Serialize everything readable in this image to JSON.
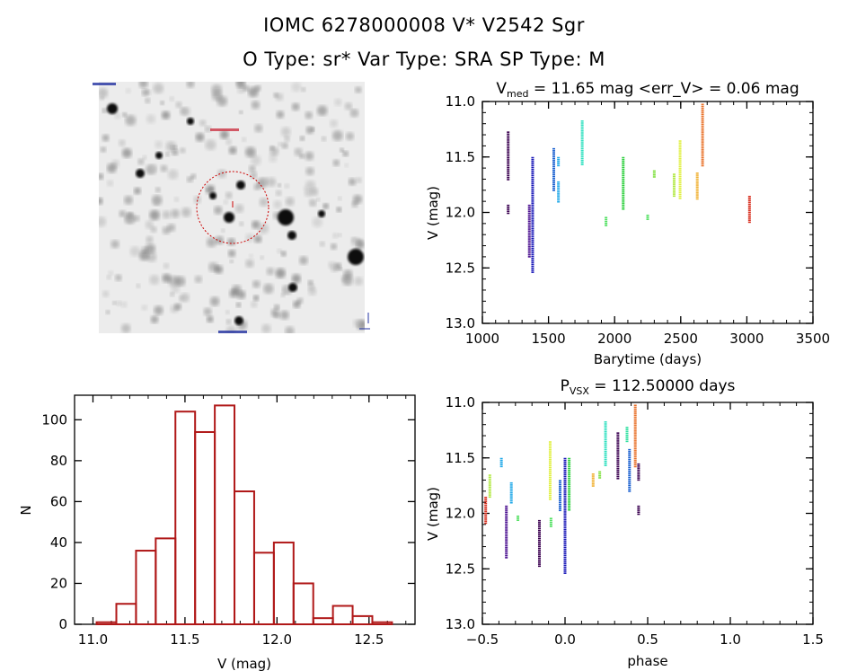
{
  "header": {
    "line1": "IOMC 6278000008    V* V2542 Sgr",
    "line2": "O Type: sr*   Var Type: SRA   SP Type: M"
  },
  "image_panel": {
    "description": "finding chart (grayscale star field)",
    "marker_color": "#cc0000"
  },
  "chart_data": [
    {
      "id": "lightcurve",
      "type": "scatter",
      "title_main": "V",
      "title_sub": "med",
      "title_rest": " = 11.65 mag <err_V> = 0.06 mag",
      "xlabel": "Barytime (days)",
      "ylabel": "V (mag)",
      "xlim": [
        1000,
        3500
      ],
      "ylim": [
        13.0,
        11.0
      ],
      "y_inverted": true,
      "xticks": [
        "1000",
        "1500",
        "2000",
        "2500",
        "3000",
        "3500"
      ],
      "yticks": [
        "11.0",
        "11.5",
        "12.0",
        "12.5",
        "13.0"
      ],
      "series": [
        {
          "name": "s1",
          "color": "#3a0050",
          "x": 1195,
          "y_ranges": [
            [
              11.27,
              11.7
            ],
            [
              11.93,
              12.01
            ]
          ]
        },
        {
          "name": "s2",
          "color": "#4a1090",
          "x": 1355,
          "y_ranges": [
            [
              11.93,
              12.4
            ]
          ]
        },
        {
          "name": "s3",
          "color": "#1a18b8",
          "x": 1380,
          "y_ranges": [
            [
              11.5,
              12.54
            ]
          ]
        },
        {
          "name": "s4",
          "color": "#1a60d0",
          "x": 1540,
          "y_ranges": [
            [
              11.42,
              11.8
            ]
          ]
        },
        {
          "name": "s5",
          "color": "#20a8e8",
          "x": 1575,
          "y_ranges": [
            [
              11.5,
              11.58
            ],
            [
              11.72,
              11.9
            ]
          ]
        },
        {
          "name": "s6",
          "color": "#30e0c0",
          "x": 1755,
          "y_ranges": [
            [
              11.17,
              11.57
            ]
          ]
        },
        {
          "name": "s7",
          "color": "#50e060",
          "x": 1935,
          "y_ranges": [
            [
              12.04,
              12.12
            ]
          ]
        },
        {
          "name": "s8",
          "color": "#30d040",
          "x": 2065,
          "y_ranges": [
            [
              11.5,
              11.97
            ]
          ]
        },
        {
          "name": "s9",
          "color": "#50e060",
          "x": 2250,
          "y_ranges": [
            [
              12.02,
              12.06
            ]
          ]
        },
        {
          "name": "s10",
          "color": "#80e040",
          "x": 2300,
          "y_ranges": [
            [
              11.62,
              11.68
            ]
          ]
        },
        {
          "name": "s11",
          "color": "#b0e840",
          "x": 2450,
          "y_ranges": [
            [
              11.65,
              11.85
            ]
          ]
        },
        {
          "name": "s12",
          "color": "#e0f040",
          "x": 2495,
          "y_ranges": [
            [
              11.35,
              11.88
            ]
          ]
        },
        {
          "name": "s13",
          "color": "#f0b030",
          "x": 2625,
          "y_ranges": [
            [
              11.64,
              11.88
            ]
          ]
        },
        {
          "name": "s14",
          "color": "#e87028",
          "x": 2665,
          "y_ranges": [
            [
              11.02,
              11.58
            ]
          ]
        },
        {
          "name": "s15",
          "color": "#d83020",
          "x": 3020,
          "y_ranges": [
            [
              11.85,
              12.09
            ]
          ]
        }
      ]
    },
    {
      "id": "histogram",
      "type": "bar",
      "xlabel": "V (mag)",
      "ylabel": "N",
      "xlim": [
        10.9,
        12.75
      ],
      "ylim": [
        0,
        112
      ],
      "xticks": [
        "11.0",
        "11.5",
        "12.0",
        "12.5"
      ],
      "yticks": [
        "0",
        "20",
        "40",
        "60",
        "80",
        "100"
      ],
      "bin_width": 0.107,
      "bin_start": 11.02,
      "values": [
        1,
        10,
        36,
        42,
        104,
        94,
        107,
        65,
        35,
        40,
        20,
        3,
        9,
        4,
        1
      ],
      "color": "#b01818"
    },
    {
      "id": "phased",
      "type": "scatter",
      "title_main": "P",
      "title_sub": "VSX",
      "title_rest": " = 112.50000 days",
      "xlabel": "phase",
      "ylabel": "V (mag)",
      "xlim": [
        -0.5,
        1.5
      ],
      "ylim": [
        13.0,
        11.0
      ],
      "y_inverted": true,
      "xticks": [
        "-0.5",
        "0.0",
        "0.5",
        "1.0",
        "1.5"
      ],
      "yticks": [
        "11.0",
        "11.5",
        "12.0",
        "12.5",
        "13.0"
      ],
      "series": [
        {
          "color": "#d83020",
          "x": -0.48,
          "y_ranges": [
            [
              11.85,
              12.09
            ]
          ]
        },
        {
          "color": "#b0e840",
          "x": -0.455,
          "y_ranges": [
            [
              11.65,
              11.85
            ]
          ]
        },
        {
          "color": "#20a8e8",
          "x": -0.385,
          "y_ranges": [
            [
              11.5,
              11.58
            ]
          ]
        },
        {
          "color": "#4a1090",
          "x": -0.355,
          "y_ranges": [
            [
              11.93,
              12.4
            ]
          ]
        },
        {
          "color": "#20a8e8",
          "x": -0.325,
          "y_ranges": [
            [
              11.72,
              11.9
            ]
          ]
        },
        {
          "color": "#50e060",
          "x": -0.285,
          "y_ranges": [
            [
              12.02,
              12.06
            ]
          ]
        },
        {
          "color": "#3a0050",
          "x": -0.155,
          "y_ranges": [
            [
              12.06,
              12.48
            ]
          ]
        },
        {
          "color": "#e0f040",
          "x": -0.09,
          "y_ranges": [
            [
              11.35,
              11.88
            ]
          ]
        },
        {
          "color": "#50e060",
          "x": -0.085,
          "y_ranges": [
            [
              12.04,
              12.12
            ]
          ]
        },
        {
          "color": "#1a60d0",
          "x": -0.03,
          "y_ranges": [
            [
              11.7,
              11.98
            ]
          ]
        },
        {
          "color": "#1a18b8",
          "x": 0.0,
          "y_ranges": [
            [
              11.5,
              12.54
            ]
          ]
        },
        {
          "color": "#30d040",
          "x": 0.025,
          "y_ranges": [
            [
              11.5,
              11.97
            ]
          ]
        },
        {
          "color": "#f0b030",
          "x": 0.17,
          "y_ranges": [
            [
              11.64,
              11.75
            ]
          ]
        },
        {
          "color": "#80e040",
          "x": 0.21,
          "y_ranges": [
            [
              11.62,
              11.68
            ]
          ]
        },
        {
          "color": "#30e0c0",
          "x": 0.245,
          "y_ranges": [
            [
              11.17,
              11.57
            ]
          ]
        },
        {
          "color": "#3a0050",
          "x": 0.32,
          "y_ranges": [
            [
              11.27,
              11.68
            ]
          ]
        },
        {
          "color": "#30e0a0",
          "x": 0.375,
          "y_ranges": [
            [
              11.22,
              11.35
            ]
          ]
        },
        {
          "color": "#1a60d0",
          "x": 0.39,
          "y_ranges": [
            [
              11.42,
              11.8
            ]
          ]
        },
        {
          "color": "#e87028",
          "x": 0.425,
          "y_ranges": [
            [
              11.02,
              11.58
            ]
          ]
        },
        {
          "color": "#3a0050",
          "x": 0.445,
          "y_ranges": [
            [
              11.55,
              11.7
            ],
            [
              11.93,
              12.01
            ]
          ]
        }
      ]
    }
  ]
}
